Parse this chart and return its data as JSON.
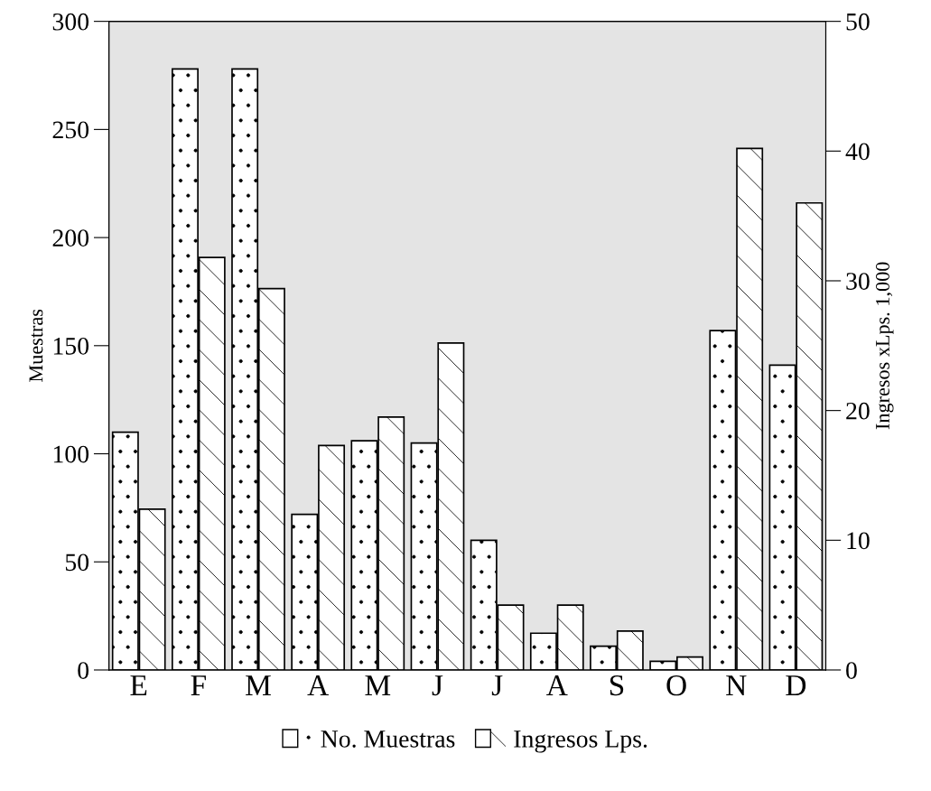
{
  "chart_data": {
    "type": "bar",
    "ylabel": "Muestras",
    "y2label": "Ingresos xLps. 1,000",
    "categories": [
      "E",
      "F",
      "M",
      "A",
      "M",
      "J",
      "J",
      "A",
      "S",
      "O",
      "N",
      "D"
    ],
    "series": [
      {
        "name": "No. Muestras",
        "color": "#ffffff",
        "values": [
          110,
          278,
          278,
          72,
          106,
          105,
          60,
          17,
          11,
          4,
          157,
          141
        ]
      },
      {
        "name": "Ingresos Lps.",
        "color": "#ffffff",
        "axis": "y2",
        "values": [
          12.4,
          31.8,
          29.4,
          17.3,
          19.5,
          25.2,
          5,
          5,
          3,
          1,
          40.2,
          36
        ]
      }
    ],
    "ylim": [
      0,
      300
    ],
    "yticks": [
      0,
      50,
      100,
      150,
      200,
      250,
      300
    ],
    "y2lim": [
      0,
      50
    ],
    "y2ticks": [
      0,
      10,
      20,
      30,
      40,
      50
    ],
    "grid": false,
    "legend": "bottom"
  }
}
